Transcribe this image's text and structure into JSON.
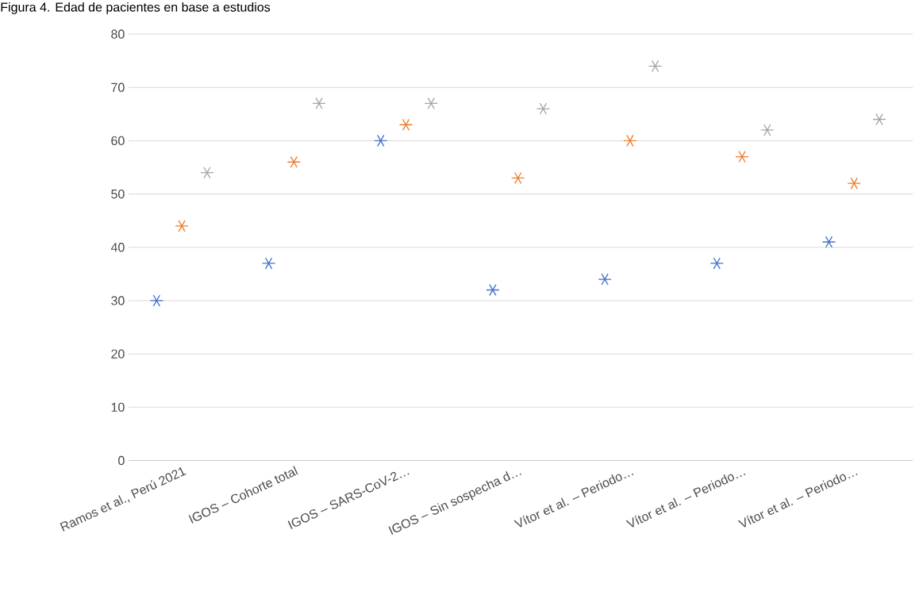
{
  "chart_data": {
    "type": "scatter",
    "title": "Figura 4. Edad de pacientes en base a estudios",
    "categories": [
      "Ramos et al., Perú 2021",
      "IGOS – Cohorte total",
      "IGOS – SARS-CoV-2…",
      "IGOS – Sin sospecha d…",
      "Vítor et al. – Periodo…",
      "Vítor et al. – Periodo…",
      "Vítor et al. – Periodo…"
    ],
    "series": [
      {
        "color": "#4472c4",
        "values": [
          30,
          37,
          60,
          32,
          34,
          37,
          41
        ]
      },
      {
        "color": "#ed7d31",
        "values": [
          44,
          56,
          63,
          53,
          60,
          57,
          52
        ]
      },
      {
        "color": "#a5a5a5",
        "values": [
          54,
          67,
          67,
          66,
          74,
          62,
          64
        ]
      }
    ],
    "ylim": [
      0,
      80
    ],
    "yticks": [
      0,
      10,
      20,
      30,
      40,
      50,
      60,
      70,
      80
    ],
    "grid": "y",
    "marker": "cross"
  }
}
